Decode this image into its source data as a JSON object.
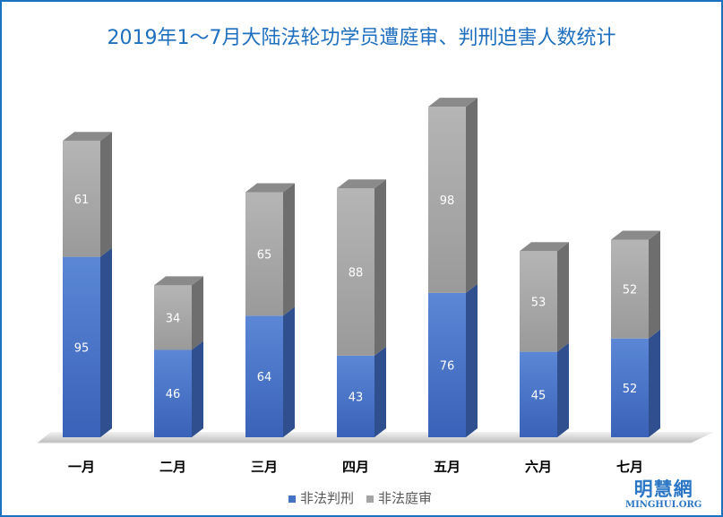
{
  "chart_data": {
    "type": "bar",
    "stacked": true,
    "three_d": true,
    "title": "2019年1～7月大陆法轮功学员遭庭审、判刑迫害人数统计",
    "categories": [
      "一月",
      "二月",
      "三月",
      "四月",
      "五月",
      "六月",
      "七月"
    ],
    "series": [
      {
        "name": "非法判刑",
        "values": [
          95,
          46,
          64,
          43,
          76,
          45,
          52
        ],
        "color": "#4472c4"
      },
      {
        "name": "非法庭审",
        "values": [
          61,
          34,
          65,
          88,
          98,
          53,
          52
        ],
        "color": "#a5a5a5"
      }
    ],
    "legend": "bottom",
    "grid": false
  },
  "logo": {
    "cn": "明慧網",
    "en": "MINGHUI.ORG"
  }
}
